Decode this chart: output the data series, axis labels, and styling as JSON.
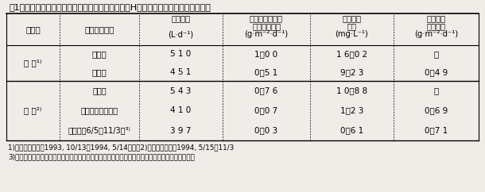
{
  "title": "表1　バイオジオフィルター水路の窒素除去成績（H水路，資源植物・ハーブ水路）",
  "col_headers": [
    [
      "平均水量",
      "",
      "(L·d⁻¹)"
    ],
    [
      "平均窒素負荷量",
      "または流出量",
      "(g·m⁻²·d⁻¹)"
    ],
    [
      "平均窒素",
      "濃度",
      "(mg·L⁻¹)"
    ],
    [
      "平均窒素",
      "除去速度",
      "(g·m⁻²·d⁻¹)"
    ]
  ],
  "rows": [
    {
      "period": "冬 期¹⁾",
      "entries": [
        {
          "label": "流入水",
          "v1": "5 1 0",
          "v2": "1．0 0",
          "v3": "1 6．0 2",
          "v4": "－"
        },
        {
          "label": "流出水",
          "v1": "4 5 1",
          "v2": "0．5 1",
          "v3": "9．2 3",
          "v4": "0．4 9"
        }
      ]
    },
    {
      "period": "夏 期²⁾",
      "entries": [
        {
          "label": "流入水",
          "v1": "5 4 3",
          "v2": "0．7 6",
          "v3": "1 0．8 8",
          "v4": "－"
        },
        {
          "label": "流出水（全期間）",
          "v1": "4 1 0",
          "v2": "0．0 7",
          "v3": "1．2 3",
          "v4": "0．6 9"
        },
        {
          "label": "流出水（6/5〜11/3）³⁾",
          "v1": "3 9 7",
          "v2": "0．0 3",
          "v3": "0．6 1",
          "v4": "0．7 1"
        }
      ]
    }
  ],
  "footnotes": [
    "1)冬期試験期間：1993, 10/13〜1994, 5/14，　　2)夏期試験期間：1994, 5/15〜11/3",
    "3)栽植したモロヘイヤ，ケナフ，パピルスなどが生長し，水質浄化機能を発揮した時期の処理成績"
  ],
  "bg_color": "#f0ede8",
  "font_size": 7.5,
  "title_font_size": 8.0
}
